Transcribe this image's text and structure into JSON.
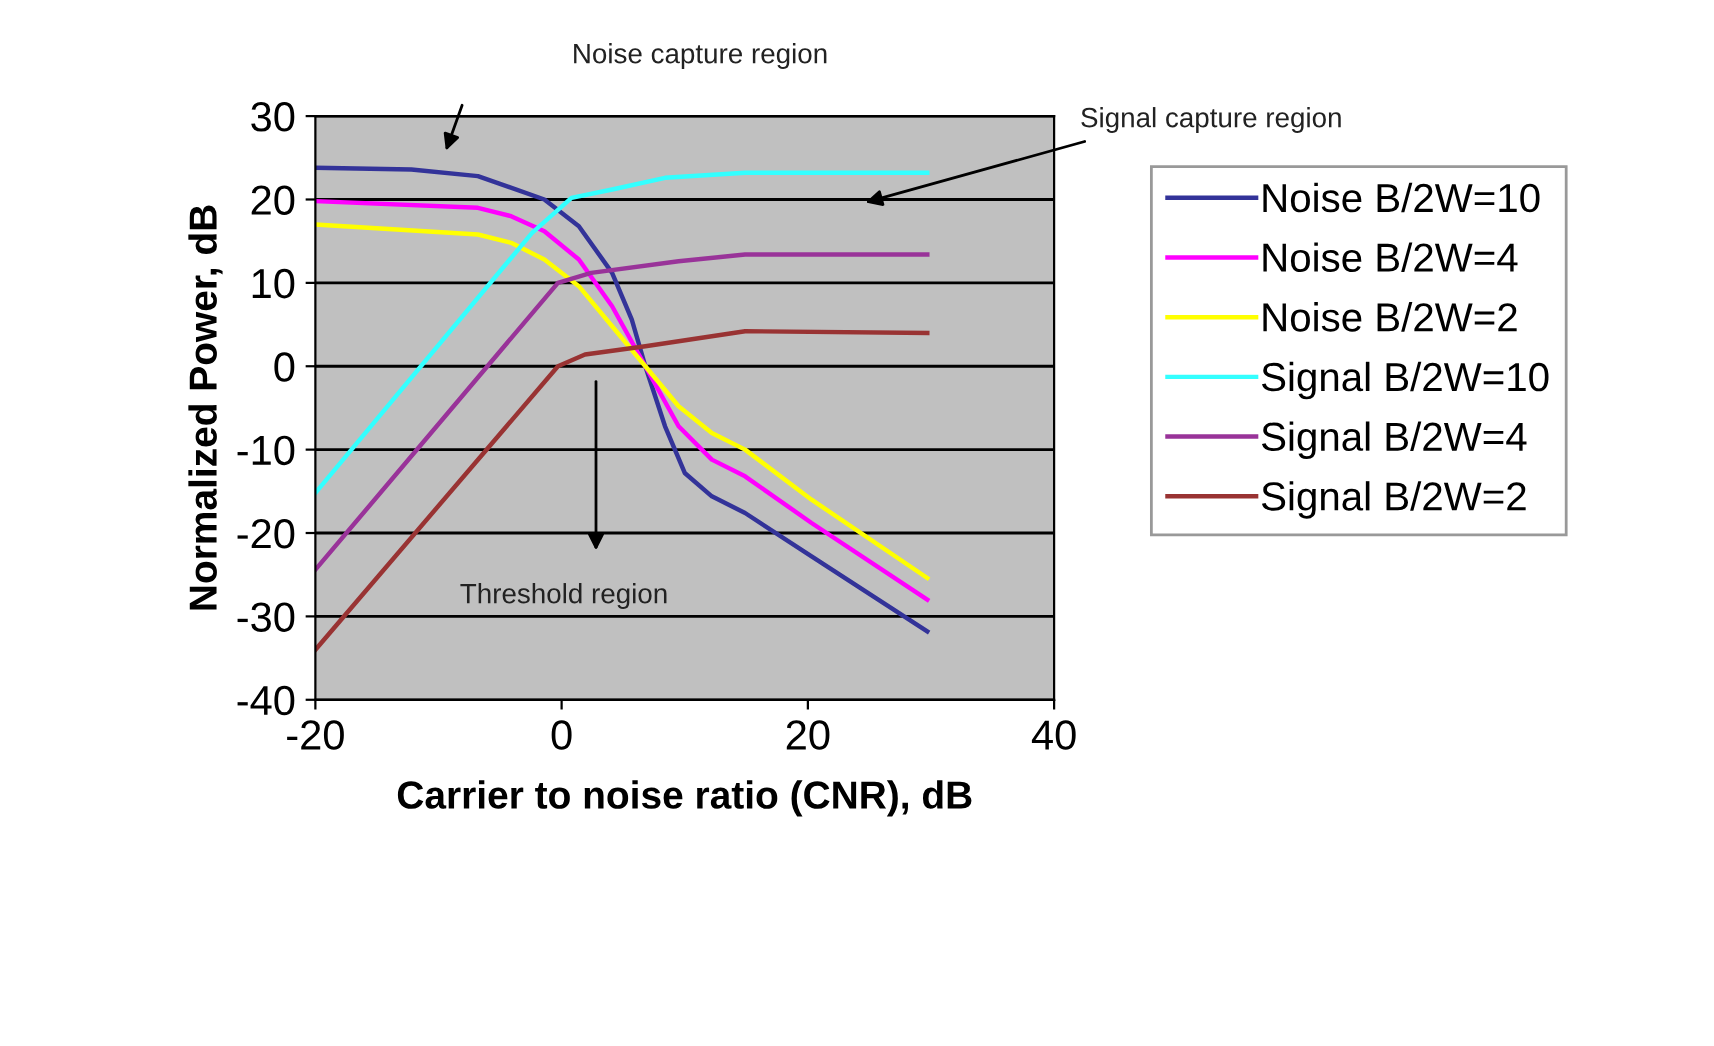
{
  "chart_data": {
    "type": "line",
    "xlabel": "Carrier to noise ratio (CNR), dB",
    "ylabel": "Normalized Power, dB",
    "xlim": [
      -20,
      40
    ],
    "xticks": [
      -20,
      0,
      20,
      40
    ],
    "ylim": [
      -40,
      30
    ],
    "yticks": [
      -40,
      -30,
      -20,
      -10,
      0,
      10,
      20,
      30
    ],
    "grid": "y",
    "legend": "right",
    "line_style": "solid",
    "marker": "none",
    "annotations": [
      "Noise capture region",
      "Signal capture region",
      "Threshold region"
    ],
    "series": [
      {
        "name": "Noise B/2W=10",
        "color": "#333399",
        "x": [
          -20,
          -12.2,
          -6.8,
          -1.4,
          1.4,
          4.1,
          5.7,
          6.8,
          8.4,
          10,
          12.2,
          14.9,
          20.3,
          29.7
        ],
        "values": [
          23.8,
          23.6,
          22.8,
          20,
          16.8,
          11.2,
          5.6,
          0,
          -7.2,
          -12.8,
          -15.6,
          -17.6,
          -22.8,
          -31.8
        ]
      },
      {
        "name": "Noise B/2W=4",
        "color": "#ff00ff",
        "x": [
          -20,
          -6.8,
          -4.1,
          -1.4,
          1.4,
          4.1,
          6.8,
          9.5,
          12.2,
          14.9,
          20.3,
          29.7
        ],
        "values": [
          19.8,
          19,
          18,
          16.2,
          12.8,
          7.2,
          0,
          -7.2,
          -11.2,
          -13.2,
          -18.8,
          -28
        ]
      },
      {
        "name": "Noise B/2W=2",
        "color": "#ffff00",
        "x": [
          -20,
          -6.8,
          -4.1,
          -1.4,
          1.4,
          4.1,
          6.8,
          9.5,
          12.2,
          14.9,
          20.3,
          29.7
        ],
        "values": [
          17,
          15.8,
          14.8,
          12.8,
          9.6,
          4.8,
          0,
          -4.8,
          -8,
          -10,
          -16,
          -25.4
        ]
      },
      {
        "name": "Signal B/2W=10",
        "color": "#33ffff",
        "x": [
          -20,
          -2.4,
          0.8,
          4.1,
          8.4,
          14.9,
          29.7
        ],
        "values": [
          -15.2,
          16,
          20.2,
          21.2,
          22.6,
          23.2,
          23.2
        ]
      },
      {
        "name": "Signal B/2W=4",
        "color": "#993399",
        "x": [
          -20,
          -0.3,
          2.4,
          9.5,
          14.9,
          29.7
        ],
        "values": [
          -24.4,
          10,
          11.2,
          12.6,
          13.4,
          13.4
        ]
      },
      {
        "name": "Signal B/2W=2",
        "color": "#993333",
        "x": [
          -20,
          -0.3,
          1.9,
          6.8,
          14.9,
          29.7
        ],
        "values": [
          -34,
          0,
          1.4,
          2.4,
          4.2,
          4
        ]
      }
    ]
  }
}
